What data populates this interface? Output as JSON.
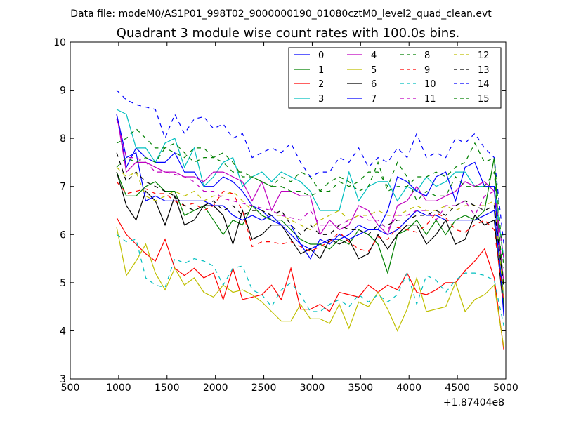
{
  "header": {
    "data_file": "Data file: modeM0/AS1P01_998T02_9000000190_01080cztM0_level2_quad_clean.evt"
  },
  "chart_data": {
    "type": "line",
    "title": "Quadrant 3 module wise count rates with 100.0s bins.",
    "xlabel": "",
    "ylabel": "",
    "x_offset_label": "+1.87404e8",
    "xlim": [
      500,
      5000
    ],
    "ylim": [
      3,
      10
    ],
    "xticks": [
      500,
      1000,
      1500,
      2000,
      2500,
      3000,
      3500,
      4000,
      4500,
      5000
    ],
    "yticks": [
      3,
      4,
      5,
      6,
      7,
      8,
      9,
      10
    ],
    "grid": false,
    "legend_position": "top-right",
    "x": [
      980,
      1080,
      1180,
      1280,
      1380,
      1480,
      1580,
      1680,
      1780,
      1880,
      1980,
      2080,
      2180,
      2280,
      2380,
      2480,
      2580,
      2680,
      2780,
      2880,
      2980,
      3080,
      3180,
      3280,
      3380,
      3480,
      3580,
      3680,
      3780,
      3880,
      3980,
      4080,
      4180,
      4280,
      4380,
      4480,
      4580,
      4680,
      4780,
      4880,
      4980
    ],
    "series": [
      {
        "name": "0",
        "color": "#0000ff",
        "dash": "solid",
        "values": [
          8.5,
          7.4,
          7.8,
          7.6,
          7.5,
          7.5,
          7.7,
          7.3,
          7.3,
          7.0,
          7.0,
          7.2,
          7.1,
          6.9,
          6.6,
          6.5,
          6.3,
          6.2,
          6.0,
          5.8,
          5.7,
          5.8,
          5.9,
          5.9,
          6.0,
          6.2,
          6.1,
          6.1,
          6.0,
          6.1,
          6.3,
          6.5,
          6.4,
          6.4,
          6.3,
          6.3,
          6.3,
          6.3,
          6.4,
          6.5,
          4.6
        ]
      },
      {
        "name": "1",
        "color": "#008000",
        "dash": "solid",
        "values": [
          7.3,
          6.8,
          6.8,
          7.0,
          7.1,
          6.9,
          6.9,
          6.4,
          6.5,
          6.6,
          6.3,
          6.0,
          6.3,
          6.2,
          6.6,
          6.4,
          6.3,
          6.3,
          6.1,
          5.9,
          5.8,
          5.8,
          5.7,
          5.9,
          5.8,
          6.1,
          6.0,
          5.8,
          5.2,
          6.0,
          6.1,
          6.3,
          6.0,
          6.3,
          6.0,
          6.3,
          6.4,
          6.3,
          6.5,
          7.6,
          4.5
        ]
      },
      {
        "name": "2",
        "color": "#ff0000",
        "dash": "solid",
        "values": [
          6.35,
          6.0,
          5.8,
          5.6,
          5.45,
          5.9,
          5.3,
          5.15,
          5.3,
          5.1,
          5.2,
          4.65,
          5.3,
          4.65,
          4.7,
          4.75,
          4.95,
          4.65,
          5.3,
          4.45,
          4.45,
          4.55,
          4.4,
          4.8,
          4.75,
          4.7,
          4.95,
          4.8,
          4.95,
          4.85,
          5.2,
          4.8,
          4.75,
          4.85,
          5.0,
          5.0,
          5.25,
          5.45,
          5.7,
          5.1,
          3.6
        ]
      },
      {
        "name": "3",
        "color": "#00bfbf",
        "dash": "solid",
        "values": [
          8.6,
          8.5,
          7.8,
          7.8,
          7.5,
          7.9,
          8.0,
          7.4,
          7.8,
          7.0,
          7.2,
          7.5,
          7.6,
          7.0,
          7.2,
          7.3,
          7.1,
          7.3,
          7.2,
          7.1,
          6.9,
          6.5,
          6.5,
          6.5,
          7.3,
          6.7,
          7.0,
          7.1,
          7.1,
          6.7,
          7.0,
          6.9,
          7.2,
          7.0,
          7.1,
          7.3,
          7.3,
          7.0,
          7.0,
          7.0,
          5.5
        ]
      },
      {
        "name": "4",
        "color": "#bf00bf",
        "dash": "solid",
        "values": [
          8.5,
          7.3,
          7.5,
          7.5,
          7.4,
          7.3,
          7.3,
          7.2,
          7.2,
          7.1,
          7.3,
          7.3,
          7.2,
          7.1,
          6.7,
          7.1,
          6.5,
          6.9,
          6.9,
          6.8,
          6.8,
          6.0,
          6.3,
          6.1,
          6.2,
          6.6,
          6.5,
          6.2,
          6.0,
          6.6,
          6.7,
          7.0,
          6.7,
          6.7,
          6.8,
          6.9,
          7.1,
          7.0,
          7.1,
          6.9,
          5.0
        ]
      },
      {
        "name": "5",
        "color": "#bfbf00",
        "dash": "solid",
        "values": [
          6.15,
          5.15,
          5.45,
          5.8,
          5.2,
          4.85,
          5.3,
          4.95,
          5.1,
          4.8,
          4.7,
          4.95,
          4.8,
          4.85,
          4.75,
          4.6,
          4.4,
          4.2,
          4.2,
          4.55,
          4.25,
          4.25,
          4.15,
          4.55,
          4.05,
          4.6,
          4.5,
          4.8,
          4.45,
          4.0,
          4.45,
          5.1,
          4.4,
          4.45,
          4.5,
          5.0,
          4.4,
          4.65,
          4.75,
          4.95,
          3.65
        ]
      },
      {
        "name": "6",
        "color": "#000000",
        "dash": "solid",
        "values": [
          7.3,
          6.6,
          6.3,
          6.9,
          6.7,
          6.2,
          6.8,
          6.2,
          6.3,
          6.6,
          6.6,
          6.4,
          5.8,
          6.5,
          5.9,
          6.0,
          6.2,
          6.2,
          5.9,
          5.6,
          5.7,
          5.5,
          5.9,
          5.8,
          5.9,
          5.5,
          5.6,
          6.0,
          5.7,
          6.0,
          6.2,
          6.2,
          5.8,
          6.0,
          6.3,
          5.8,
          5.9,
          6.4,
          6.2,
          6.3,
          4.4
        ]
      },
      {
        "name": "7",
        "color": "#0000ff",
        "dash": "solid",
        "values": [
          8.5,
          7.6,
          7.7,
          6.7,
          6.8,
          6.7,
          6.7,
          6.7,
          6.7,
          6.7,
          6.6,
          6.6,
          6.4,
          6.3,
          6.4,
          6.3,
          6.4,
          6.2,
          6.2,
          5.8,
          5.5,
          5.9,
          5.8,
          6.0,
          5.9,
          6.0,
          6.1,
          6.1,
          6.5,
          7.2,
          7.1,
          6.9,
          6.8,
          7.2,
          7.3,
          6.7,
          7.4,
          7.5,
          7.0,
          7.0,
          4.3
        ]
      },
      {
        "name": "8",
        "color": "#008000",
        "dash": "dashed",
        "values": [
          7.4,
          7.6,
          7.5,
          7.6,
          7.5,
          7.8,
          7.7,
          7.6,
          7.8,
          7.8,
          7.6,
          7.5,
          7.3,
          7.3,
          7.2,
          7.1,
          7.0,
          7.2,
          7.1,
          7.3,
          7.2,
          6.9,
          6.9,
          7.1,
          7.0,
          7.1,
          7.3,
          7.3,
          7.0,
          7.5,
          7.2,
          6.7,
          6.9,
          6.8,
          6.8,
          7.2,
          7.0,
          7.0,
          7.0,
          7.3,
          4.9
        ]
      },
      {
        "name": "9",
        "color": "#ff0000",
        "dash": "dashed",
        "values": [
          7.1,
          6.85,
          6.9,
          6.95,
          6.85,
          6.85,
          6.7,
          6.6,
          6.65,
          6.5,
          6.6,
          6.9,
          6.85,
          6.5,
          5.75,
          5.85,
          5.85,
          5.8,
          5.85,
          5.75,
          5.65,
          5.75,
          5.85,
          6.05,
          5.85,
          5.7,
          5.65,
          5.95,
          5.9,
          6.15,
          6.1,
          6.05,
          6.2,
          6.45,
          6.35,
          6.1,
          6.05,
          6.2,
          6.3,
          6.1,
          4.6
        ]
      },
      {
        "name": "10",
        "color": "#00bfbf",
        "dash": "dashed",
        "values": [
          6.0,
          5.85,
          5.9,
          5.1,
          4.95,
          4.9,
          5.5,
          5.4,
          5.5,
          5.45,
          5.35,
          4.95,
          5.3,
          5.35,
          4.85,
          4.75,
          4.5,
          4.85,
          5.0,
          4.75,
          4.4,
          4.4,
          4.55,
          4.65,
          4.5,
          4.75,
          4.6,
          4.75,
          4.6,
          4.75,
          5.2,
          4.55,
          5.15,
          5.05,
          4.8,
          5.05,
          5.2,
          5.2,
          5.15,
          5.05,
          4.1
        ]
      },
      {
        "name": "11",
        "color": "#bf00bf",
        "dash": "dashed",
        "values": [
          8.4,
          7.6,
          7.6,
          7.5,
          7.3,
          7.3,
          7.25,
          7.2,
          7.1,
          6.9,
          6.9,
          6.75,
          6.7,
          6.65,
          6.6,
          6.55,
          6.5,
          6.4,
          6.35,
          6.3,
          6.5,
          6.2,
          6.2,
          6.2,
          6.3,
          6.4,
          6.3,
          6.3,
          6.1,
          6.4,
          6.4,
          6.5,
          6.5,
          6.3,
          6.6,
          6.6,
          6.7,
          6.4,
          6.8,
          6.9,
          5.5
        ]
      },
      {
        "name": "12",
        "color": "#bfbf00",
        "dash": "dashed",
        "values": [
          7.4,
          7.2,
          7.3,
          6.8,
          6.7,
          6.8,
          6.9,
          6.8,
          6.9,
          6.7,
          6.8,
          6.8,
          6.9,
          6.7,
          6.5,
          6.5,
          6.4,
          6.4,
          6.3,
          6.2,
          6.1,
          6.3,
          6.4,
          6.5,
          6.3,
          6.4,
          6.4,
          6.5,
          6.4,
          6.4,
          6.5,
          6.6,
          6.5,
          6.5,
          6.6,
          6.5,
          6.6,
          6.6,
          6.6,
          6.7,
          4.7
        ]
      },
      {
        "name": "13",
        "color": "#000000",
        "dash": "dashed",
        "values": [
          7.7,
          7.1,
          7.3,
          7.1,
          7.0,
          6.9,
          6.8,
          6.6,
          6.5,
          6.6,
          6.7,
          6.5,
          6.6,
          6.4,
          6.5,
          6.5,
          6.4,
          6.5,
          6.2,
          6.0,
          6.2,
          6.0,
          6.0,
          6.2,
          6.1,
          6.1,
          6.0,
          6.2,
          6.2,
          6.3,
          6.3,
          6.4,
          6.4,
          6.5,
          6.4,
          6.6,
          6.7,
          6.6,
          6.5,
          6.6,
          4.9
        ]
      },
      {
        "name": "14",
        "color": "#0000ff",
        "dash": "dashed",
        "values": [
          9.0,
          8.8,
          8.7,
          8.65,
          8.6,
          8.0,
          8.5,
          8.1,
          8.4,
          8.45,
          8.2,
          8.3,
          8.0,
          8.1,
          7.6,
          7.7,
          7.8,
          7.7,
          7.9,
          7.5,
          7.2,
          7.3,
          7.3,
          7.6,
          7.5,
          7.8,
          7.4,
          7.6,
          7.5,
          7.8,
          7.6,
          8.1,
          7.6,
          7.7,
          7.6,
          8.0,
          7.9,
          8.1,
          7.8,
          7.6,
          5.8
        ]
      },
      {
        "name": "15",
        "color": "#008000",
        "dash": "dashed",
        "values": [
          7.9,
          8.0,
          8.2,
          8.0,
          7.8,
          7.8,
          7.9,
          7.7,
          7.5,
          7.6,
          7.6,
          7.7,
          7.5,
          7.2,
          7.2,
          7.1,
          7.0,
          7.0,
          6.9,
          6.9,
          6.8,
          6.9,
          7.1,
          7.2,
          7.1,
          6.9,
          7.0,
          7.5,
          6.9,
          7.0,
          7.0,
          7.2,
          7.2,
          7.3,
          7.2,
          7.4,
          7.5,
          7.9,
          7.5,
          7.6,
          5.3
        ]
      }
    ]
  }
}
